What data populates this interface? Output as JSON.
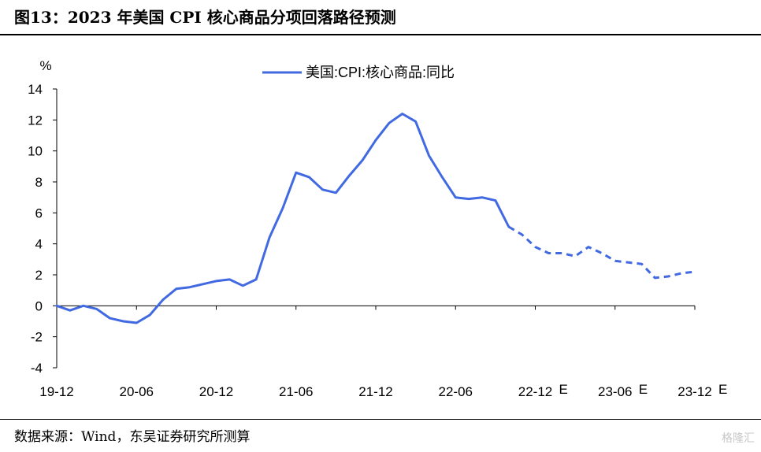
{
  "header": {
    "title": "图13：2023 年美国 CPI 核心商品分项回落路径预测"
  },
  "footer": {
    "source": "数据来源：Wind，东吴证券研究所测算",
    "watermark": "格隆汇"
  },
  "chart_data": {
    "type": "line",
    "title": "",
    "ylabel": "%",
    "xlabel": "",
    "ylim": [
      -4,
      14
    ],
    "yticks": [
      -4,
      -2,
      0,
      2,
      4,
      6,
      8,
      10,
      12,
      14
    ],
    "xlim": [
      0,
      48
    ],
    "xticks": [
      {
        "pos": 0,
        "label": "19-12"
      },
      {
        "pos": 6,
        "label": "20-06"
      },
      {
        "pos": 12,
        "label": "20-12"
      },
      {
        "pos": 18,
        "label": "21-06"
      },
      {
        "pos": 24,
        "label": "21-12"
      },
      {
        "pos": 30,
        "label": "22-06"
      },
      {
        "pos": 36,
        "label": "22-12",
        "suffix": "E"
      },
      {
        "pos": 42,
        "label": "23-06",
        "suffix": "E"
      },
      {
        "pos": 48,
        "label": "23-12",
        "suffix": "E"
      }
    ],
    "legend": {
      "position": "top-center"
    },
    "grid": false,
    "colors": {
      "series": "#4169E1",
      "axis": "#000000"
    },
    "series": [
      {
        "name": "美国:CPI:核心商品:同比",
        "actual_until_index": 34,
        "x": [
          "19-12",
          "20-01",
          "20-02",
          "20-03",
          "20-04",
          "20-05",
          "20-06",
          "20-07",
          "20-08",
          "20-09",
          "20-10",
          "20-11",
          "20-12",
          "21-01",
          "21-02",
          "21-03",
          "21-04",
          "21-05",
          "21-06",
          "21-07",
          "21-08",
          "21-09",
          "21-10",
          "21-11",
          "21-12",
          "21-13",
          "21-14",
          "21-15",
          "21-16",
          "21-17",
          "22-06",
          "22-07",
          "22-08",
          "22-09",
          "22-10",
          "22-11",
          "22-12",
          "23-01",
          "23-02",
          "23-03",
          "23-04",
          "23-05",
          "23-06",
          "23-07",
          "23-08",
          "23-09",
          "23-10",
          "23-11",
          "23-12"
        ],
        "values": [
          0.0,
          -0.3,
          0.0,
          -0.2,
          -0.8,
          -1.0,
          -1.1,
          -0.6,
          0.4,
          1.1,
          1.2,
          1.4,
          1.6,
          1.7,
          1.3,
          1.7,
          4.4,
          6.3,
          8.6,
          8.3,
          7.5,
          7.3,
          8.4,
          9.4,
          10.7,
          11.8,
          12.4,
          11.9,
          9.7,
          8.3,
          7.0,
          6.9,
          7.0,
          6.8,
          5.1,
          4.6,
          3.8,
          3.4,
          3.4,
          3.2,
          3.8,
          3.4,
          2.9,
          2.8,
          2.7,
          1.8,
          1.9,
          2.1,
          2.2
        ]
      }
    ]
  }
}
